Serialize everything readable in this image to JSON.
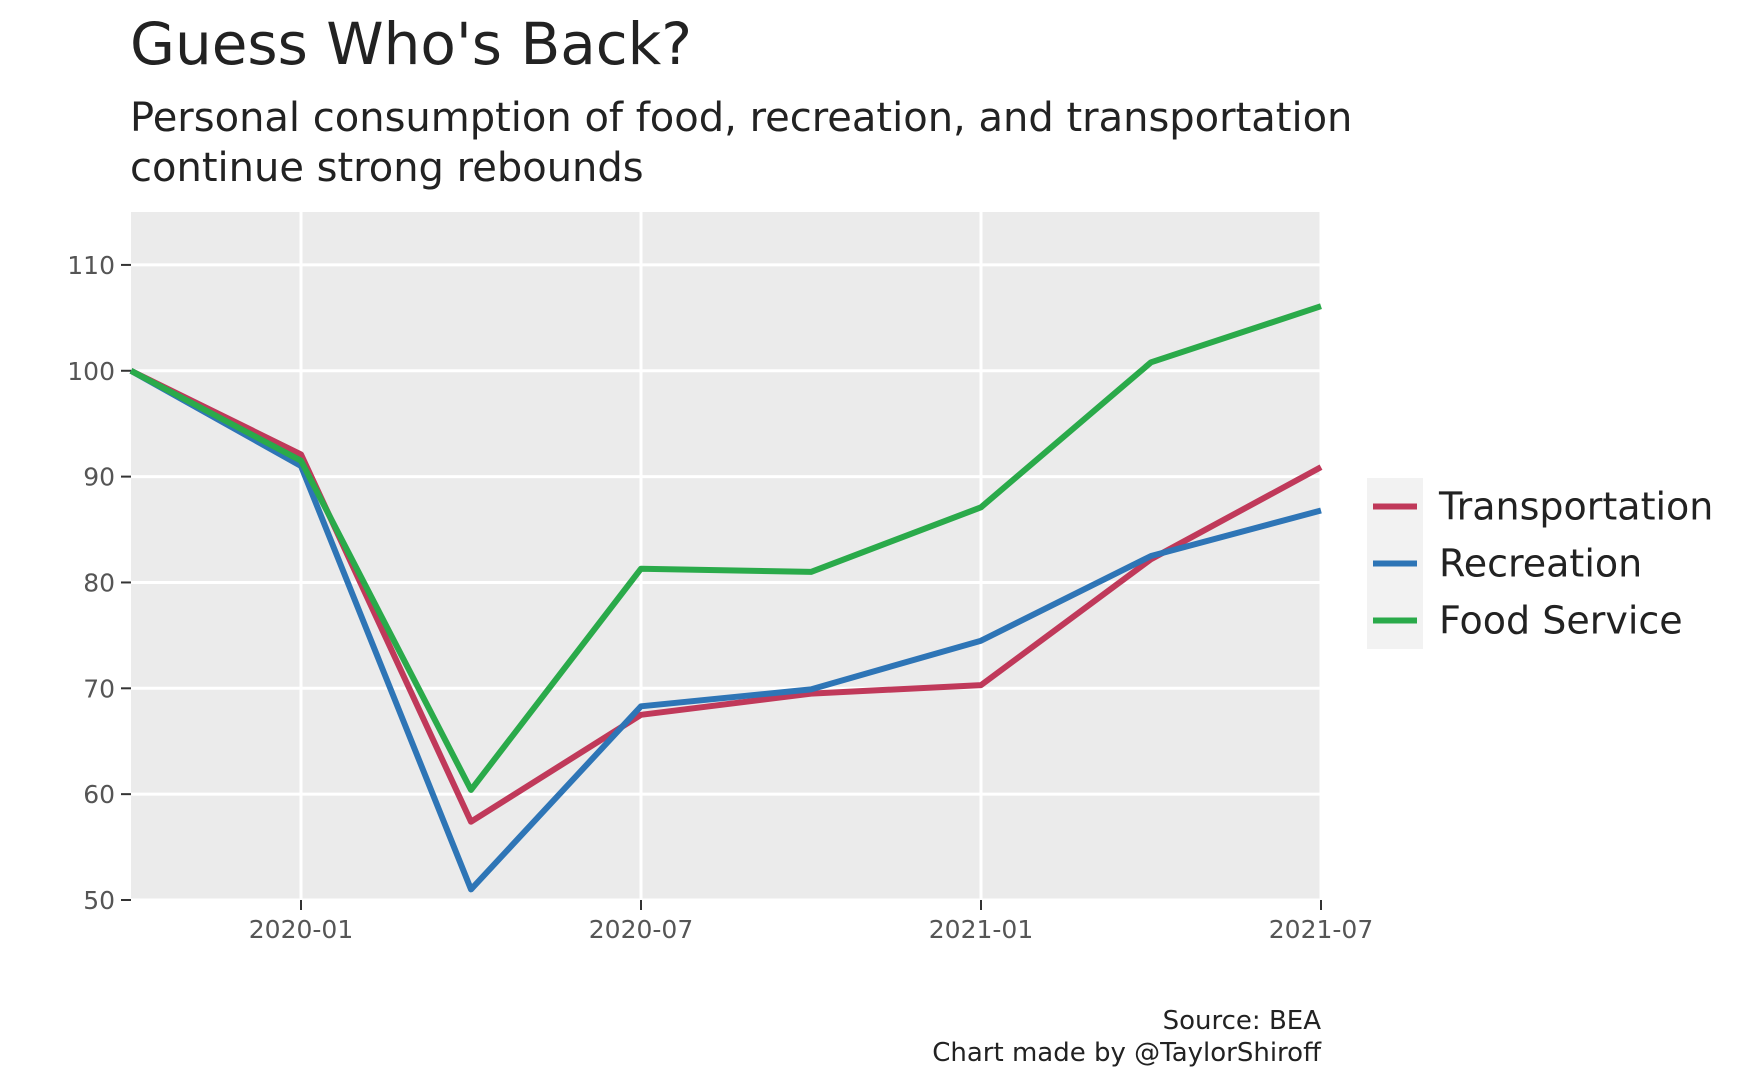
{
  "chart_data": {
    "type": "line",
    "title": "Guess Who's Back?",
    "subtitle_lines": [
      "Personal consumption of food, recreation, and transportation",
      "continue strong rebounds"
    ],
    "xlabel": "",
    "ylabel": "",
    "x": [
      "2019-10",
      "2020-01",
      "2020-04",
      "2020-07",
      "2020-10",
      "2021-01",
      "2021-04",
      "2021-07"
    ],
    "x_ticks": [
      "2020-01",
      "2020-07",
      "2021-01",
      "2021-07"
    ],
    "y_ticks": [
      50,
      60,
      70,
      80,
      90,
      100,
      110
    ],
    "ylim": [
      50,
      115
    ],
    "xlim": [
      "2019-10",
      "2021-07"
    ],
    "grid": true,
    "legend_position": "right",
    "series": [
      {
        "name": "Transportation",
        "color": "#c0395a",
        "values": [
          100,
          92.1,
          57.4,
          67.5,
          69.5,
          70.3,
          82.2,
          90.9
        ]
      },
      {
        "name": "Recreation",
        "color": "#2e75b6",
        "values": [
          100,
          91.0,
          51.0,
          68.3,
          69.9,
          74.5,
          82.5,
          86.8
        ]
      },
      {
        "name": "Food Service",
        "color": "#2aaa4a",
        "values": [
          100,
          91.5,
          60.4,
          81.3,
          81.0,
          87.1,
          100.8,
          106.1
        ]
      }
    ],
    "caption_lines": [
      "Source: BEA",
      "Chart made by @TaylorShiroff"
    ]
  }
}
